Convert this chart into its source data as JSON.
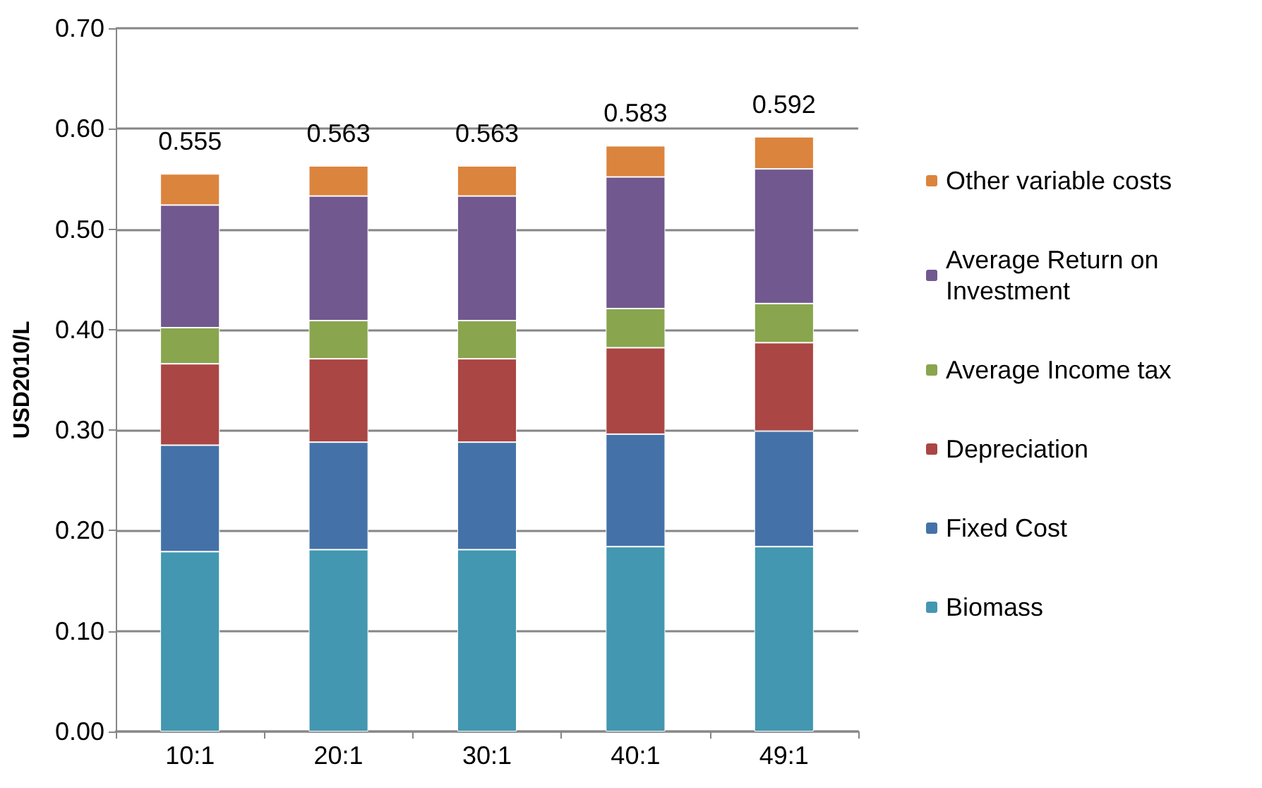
{
  "chart_data": {
    "type": "bar",
    "stacked": true,
    "ylabel": "USD2010/L",
    "categories": [
      "10:1",
      "20:1",
      "30:1",
      "40:1",
      "49:1"
    ],
    "series": [
      {
        "name": "Biomass",
        "color": "#4397b0",
        "values": [
          0.179,
          0.181,
          0.181,
          0.184,
          0.184
        ]
      },
      {
        "name": "Fixed Cost",
        "color": "#4472a8",
        "values": [
          0.106,
          0.107,
          0.107,
          0.112,
          0.115
        ]
      },
      {
        "name": "Depreciation",
        "color": "#aa4644",
        "values": [
          0.081,
          0.083,
          0.083,
          0.086,
          0.088
        ]
      },
      {
        "name": "Average Income tax",
        "color": "#89a54e",
        "values": [
          0.036,
          0.038,
          0.038,
          0.039,
          0.039
        ]
      },
      {
        "name": "Average Return on Investment",
        "color": "#71588f",
        "values": [
          0.122,
          0.124,
          0.124,
          0.131,
          0.134
        ]
      },
      {
        "name": "Other variable costs",
        "color": "#db843d",
        "values": [
          0.031,
          0.03,
          0.03,
          0.031,
          0.032
        ]
      }
    ],
    "totals": [
      "0.555",
      "0.563",
      "0.563",
      "0.583",
      "0.592"
    ],
    "ylim": [
      0,
      0.7
    ],
    "yticks": [
      {
        "value": 0,
        "label": "0.00"
      },
      {
        "value": 0.1,
        "label": "0.10"
      },
      {
        "value": 0.2,
        "label": "0.20"
      },
      {
        "value": 0.3,
        "label": "0.30"
      },
      {
        "value": 0.4,
        "label": "0.40"
      },
      {
        "value": 0.5,
        "label": "0.50"
      },
      {
        "value": 0.6,
        "label": "0.60"
      },
      {
        "value": 0.7,
        "label": "0.70"
      }
    ],
    "grid": "y",
    "legend": "right"
  }
}
